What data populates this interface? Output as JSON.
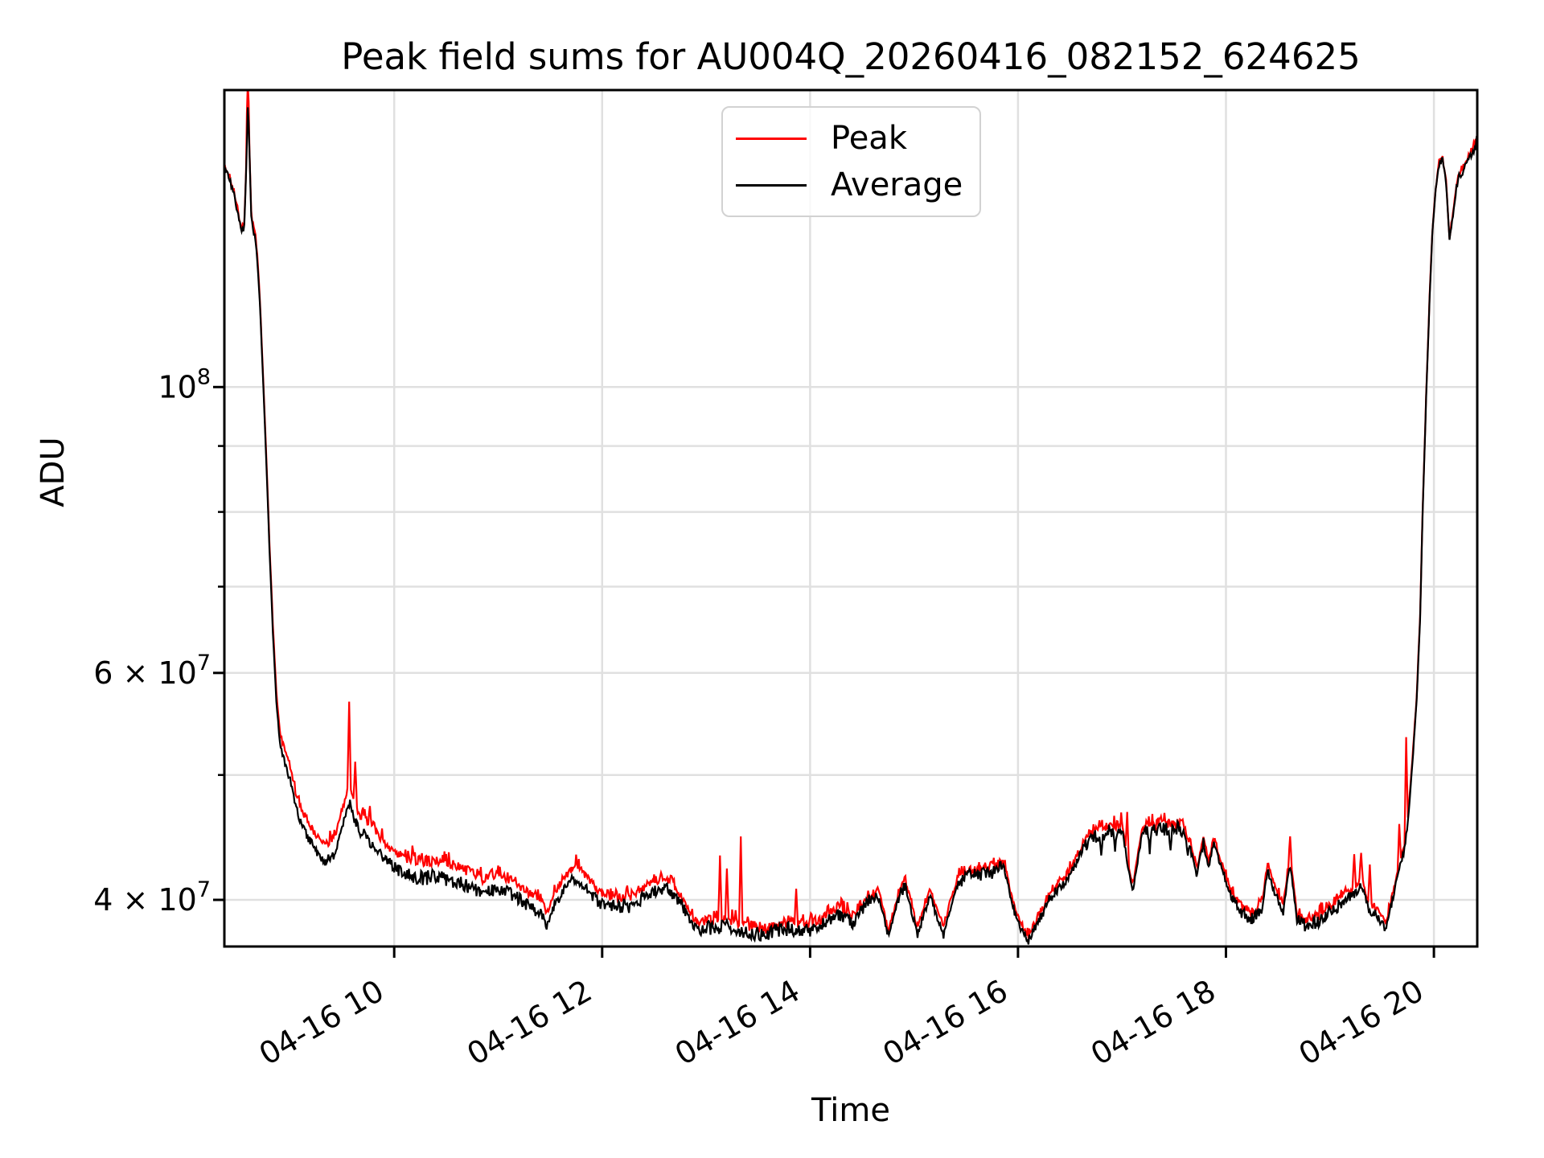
{
  "chart_data": {
    "type": "line",
    "title": "Peak field sums for AU004Q_20260416_082152_624625",
    "xlabel": "Time",
    "ylabel": "ADU",
    "yscale": "log",
    "grid": true,
    "legend_position": "upper center",
    "legend": [
      {
        "label": "Peak",
        "color": "#ff0000"
      },
      {
        "label": "Average",
        "color": "#000000"
      }
    ],
    "colors": {
      "grid": "#e0e0e0",
      "axis": "#000000",
      "background": "#ffffff"
    },
    "ylim": [
      36800000.0,
      170000000.0
    ],
    "x_domain_minutes": [
      502,
      1225
    ],
    "xticks": [
      {
        "minutes": 600,
        "label": "04-16 10"
      },
      {
        "minutes": 720,
        "label": "04-16 12"
      },
      {
        "minutes": 840,
        "label": "04-16 14"
      },
      {
        "minutes": 960,
        "label": "04-16 16"
      },
      {
        "minutes": 1080,
        "label": "04-16 18"
      },
      {
        "minutes": 1200,
        "label": "04-16 20"
      }
    ],
    "yticks_major": [
      {
        "value": 40000000.0,
        "base": "4 × 10",
        "exp": "7"
      },
      {
        "value": 60000000.0,
        "base": "6 × 10",
        "exp": "7"
      },
      {
        "value": 100000000.0,
        "base": "10",
        "exp": "8"
      }
    ],
    "yticks_minor": [
      50000000.0,
      70000000.0,
      80000000.0,
      90000000.0
    ],
    "average_anchors": [
      [
        502,
        148000000.0
      ],
      [
        505,
        145000000.0
      ],
      [
        508,
        140000000.0
      ],
      [
        510,
        136000000.0
      ],
      [
        512,
        131500000.0
      ],
      [
        513.5,
        133500000.0
      ],
      [
        514.8,
        150000000.0
      ],
      [
        515.6,
        167000000.0
      ],
      [
        516.4,
        154000000.0
      ],
      [
        517.5,
        136000000.0
      ],
      [
        518.5,
        132500000.0
      ],
      [
        520,
        130000000.0
      ],
      [
        521,
        125500000.0
      ],
      [
        522.5,
        116000000.0
      ],
      [
        524,
        104000000.0
      ],
      [
        526,
        89000000.0
      ],
      [
        528,
        75000000.0
      ],
      [
        530,
        64500000.0
      ],
      [
        532,
        57000000.0
      ],
      [
        534,
        53000000.0
      ],
      [
        536,
        51500000.0
      ],
      [
        538,
        50500000.0
      ],
      [
        540,
        49500000.0
      ],
      [
        543,
        47300000.0
      ],
      [
        547,
        45600000.0
      ],
      [
        552,
        44300000.0
      ],
      [
        556,
        43300000.0
      ],
      [
        561,
        42800000.0
      ],
      [
        566,
        43600000.0
      ],
      [
        570,
        45500000.0
      ],
      [
        574,
        47800000.0
      ],
      [
        577,
        46200000.0
      ],
      [
        581,
        45000000.0
      ],
      [
        584,
        44800000.0
      ],
      [
        589,
        43800000.0
      ],
      [
        596,
        42800000.0
      ],
      [
        605,
        41900000.0
      ],
      [
        614,
        41600000.0
      ],
      [
        626,
        41700000.0
      ],
      [
        638,
        41200000.0
      ],
      [
        651,
        40500000.0
      ],
      [
        661,
        40800000.0
      ],
      [
        670,
        40200000.0
      ],
      [
        679,
        39500000.0
      ],
      [
        685,
        39000000.0
      ],
      [
        688,
        38200000.0
      ],
      [
        692,
        39500000.0
      ],
      [
        698,
        40800000.0
      ],
      [
        705,
        41700000.0
      ],
      [
        712,
        40600000.0
      ],
      [
        719,
        39700000.0
      ],
      [
        728,
        39500000.0
      ],
      [
        737,
        39600000.0
      ],
      [
        747,
        40400000.0
      ],
      [
        754,
        40900000.0
      ],
      [
        761,
        40500000.0
      ],
      [
        768,
        39200000.0
      ],
      [
        774,
        38000000.0
      ],
      [
        784,
        38000000.0
      ],
      [
        793,
        38200000.0
      ],
      [
        802,
        37800000.0
      ],
      [
        814,
        37600000.0
      ],
      [
        826,
        38000000.0
      ],
      [
        837,
        37800000.0
      ],
      [
        846,
        38200000.0
      ],
      [
        856,
        39000000.0
      ],
      [
        865,
        38400000.0
      ],
      [
        874,
        40000000.0
      ],
      [
        880,
        40200000.0
      ],
      [
        885,
        37400000.0
      ],
      [
        892,
        40500000.0
      ],
      [
        895,
        41000000.0
      ],
      [
        902,
        37600000.0
      ],
      [
        909,
        40300000.0
      ],
      [
        917,
        37700000.0
      ],
      [
        925,
        41200000.0
      ],
      [
        932,
        41800000.0
      ],
      [
        942,
        41900000.0
      ],
      [
        952,
        42400000.0
      ],
      [
        957,
        39500000.0
      ],
      [
        962,
        37800000.0
      ],
      [
        966,
        37200000.0
      ],
      [
        972,
        38500000.0
      ],
      [
        978,
        40000000.0
      ],
      [
        984,
        41000000.0
      ],
      [
        990,
        41800000.0
      ],
      [
        997,
        43800000.0
      ],
      [
        1004,
        44800000.0
      ],
      [
        1013,
        45200000.0
      ],
      [
        1020,
        45400000.0
      ],
      [
        1026,
        40500000.0
      ],
      [
        1032,
        45300000.0
      ],
      [
        1043,
        45500000.0
      ],
      [
        1055,
        45400000.0
      ],
      [
        1060,
        43500000.0
      ],
      [
        1063,
        41800000.0
      ],
      [
        1067,
        44200000.0
      ],
      [
        1070,
        42500000.0
      ],
      [
        1073,
        44200000.0
      ],
      [
        1077,
        42500000.0
      ],
      [
        1082,
        40500000.0
      ],
      [
        1088,
        39200000.0
      ],
      [
        1095,
        38600000.0
      ],
      [
        1101,
        39500000.0
      ],
      [
        1104,
        42200000.0
      ],
      [
        1109,
        40200000.0
      ],
      [
        1113,
        39200000.0
      ],
      [
        1117,
        42800000.0
      ],
      [
        1121,
        38500000.0
      ],
      [
        1127,
        38200000.0
      ],
      [
        1134,
        38500000.0
      ],
      [
        1141,
        39200000.0
      ],
      [
        1147,
        39800000.0
      ],
      [
        1153,
        40200000.0
      ],
      [
        1158,
        41200000.0
      ],
      [
        1162,
        39500000.0
      ],
      [
        1168,
        38800000.0
      ],
      [
        1172,
        37800000.0
      ],
      [
        1177,
        40500000.0
      ],
      [
        1180,
        42200000.0
      ],
      [
        1183,
        43800000.0
      ],
      [
        1185,
        46000000.0
      ],
      [
        1188,
        52000000.0
      ],
      [
        1190,
        57000000.0
      ],
      [
        1192,
        66000000.0
      ],
      [
        1193.5,
        80000000.0
      ],
      [
        1195.5,
        98000000.0
      ],
      [
        1197.5,
        117000000.0
      ],
      [
        1199,
        131000000.0
      ],
      [
        1201,
        142000000.0
      ],
      [
        1203,
        149000000.0
      ],
      [
        1205,
        150000000.0
      ],
      [
        1207,
        144000000.0
      ],
      [
        1209,
        130000000.0
      ],
      [
        1211,
        136000000.0
      ],
      [
        1213,
        143000000.0
      ],
      [
        1215,
        146500000.0
      ],
      [
        1218,
        148000000.0
      ],
      [
        1220,
        150500000.0
      ],
      [
        1223,
        153000000.0
      ],
      [
        1225,
        155000000.0
      ]
    ],
    "peak_offset_anchors": [
      [
        502,
        1.004
      ],
      [
        514,
        1.004
      ],
      [
        524,
        1.008
      ],
      [
        530,
        1.014
      ],
      [
        536,
        1.022
      ],
      [
        545,
        1.028
      ],
      [
        560,
        1.03
      ],
      [
        620,
        1.03
      ],
      [
        660,
        1.026
      ],
      [
        700,
        1.022
      ],
      [
        740,
        1.018
      ],
      [
        780,
        1.013
      ],
      [
        830,
        1.01
      ],
      [
        880,
        1.012
      ],
      [
        940,
        1.01
      ],
      [
        1000,
        1.008
      ],
      [
        1060,
        1.01
      ],
      [
        1120,
        1.012
      ],
      [
        1170,
        1.012
      ],
      [
        1185,
        1.008
      ],
      [
        1195,
        1.004
      ],
      [
        1210,
        1.003
      ],
      [
        1225,
        1.004
      ]
    ],
    "peak_spikes": [
      [
        515.6,
        172000000.0
      ],
      [
        574,
        57000000.0
      ],
      [
        577.5,
        51200000.0
      ],
      [
        586,
        47300000.0
      ],
      [
        788,
        43300000.0
      ],
      [
        792,
        42300000.0
      ],
      [
        800,
        44800000.0
      ],
      [
        832,
        40800000.0
      ],
      [
        1023,
        46800000.0
      ],
      [
        1117,
        44800000.0
      ],
      [
        1154,
        43400000.0
      ],
      [
        1158,
        43500000.0
      ],
      [
        1163,
        42600000.0
      ],
      [
        1180,
        45800000.0
      ],
      [
        1184,
        53500000.0
      ]
    ],
    "average_dips": [
      [
        1008,
        43300000.0
      ],
      [
        1016,
        43600000.0
      ],
      [
        1036,
        43400000.0
      ],
      [
        1048,
        43700000.0
      ],
      [
        1058,
        43300000.0
      ]
    ],
    "noise": {
      "seed": 7,
      "step_minutes": 0.5,
      "avg_amp_log": 0.006,
      "peak_amp_log": 0.0045,
      "peak_burst": 0.028,
      "slope_damp": 220
    }
  }
}
